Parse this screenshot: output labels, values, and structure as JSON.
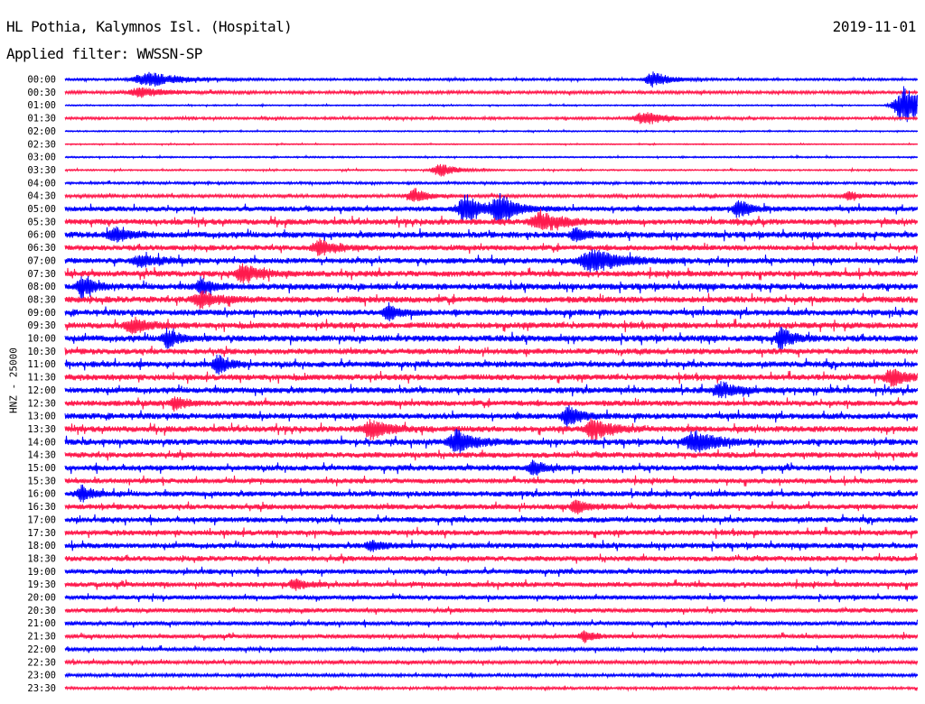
{
  "header": {
    "station": "HL Pothia, Kalymnos Isl. (Hospital)",
    "date": "2019-11-01",
    "filter_label": "Applied filter:",
    "filter_value": "WWSSN-SP"
  },
  "chart_data": {
    "type": "line",
    "title": "HL Pothia, Kalymnos Isl. (Hospital)",
    "ylabel": "HNZ - 25000",
    "trace_colors": [
      "#0000ff",
      "#ff1a4d"
    ],
    "rows": [
      "00:00",
      "00:30",
      "01:00",
      "01:30",
      "02:00",
      "02:30",
      "03:00",
      "03:30",
      "04:00",
      "04:30",
      "05:00",
      "05:30",
      "06:00",
      "06:30",
      "07:00",
      "07:30",
      "08:00",
      "08:30",
      "09:00",
      "09:30",
      "10:00",
      "10:30",
      "11:00",
      "11:30",
      "12:00",
      "12:30",
      "13:00",
      "13:30",
      "14:00",
      "14:30",
      "15:00",
      "15:30",
      "16:00",
      "16:30",
      "17:00",
      "17:30",
      "18:00",
      "18:30",
      "19:00",
      "19:30",
      "20:00",
      "20:30",
      "21:00",
      "21:30",
      "22:00",
      "22:30",
      "23:00",
      "23:30"
    ],
    "noise_level": [
      1.2,
      1.6,
      0.7,
      1.3,
      0.7,
      0.6,
      0.8,
      0.8,
      1.3,
      1.7,
      2.8,
      3.2,
      3.4,
      3.0,
      3.1,
      3.3,
      3.5,
      3.5,
      3.3,
      3.4,
      3.5,
      3.2,
      3.3,
      3.3,
      3.3,
      3.1,
      3.3,
      3.3,
      3.3,
      3.1,
      3.1,
      2.8,
      3.0,
      3.0,
      3.0,
      3.0,
      3.0,
      2.9,
      2.7,
      2.8,
      2.4,
      2.4,
      2.2,
      2.2,
      2.0,
      1.9,
      1.6,
      1.4
    ],
    "events": [
      {
        "row": 0,
        "x": 0.1,
        "amp": 8,
        "width": 0.06
      },
      {
        "row": 0,
        "x": 0.69,
        "amp": 9,
        "width": 0.03
      },
      {
        "row": 1,
        "x": 0.09,
        "amp": 5,
        "width": 0.05
      },
      {
        "row": 2,
        "x": 0.985,
        "amp": 22,
        "width": 0.04
      },
      {
        "row": 3,
        "x": 0.68,
        "amp": 8,
        "width": 0.04
      },
      {
        "row": 7,
        "x": 0.44,
        "amp": 8,
        "width": 0.03
      },
      {
        "row": 9,
        "x": 0.41,
        "amp": 8,
        "width": 0.025
      },
      {
        "row": 9,
        "x": 0.92,
        "amp": 5,
        "width": 0.02
      },
      {
        "row": 10,
        "x": 0.47,
        "amp": 16,
        "width": 0.03
      },
      {
        "row": 10,
        "x": 0.51,
        "amp": 16,
        "width": 0.03
      },
      {
        "row": 10,
        "x": 0.79,
        "amp": 10,
        "width": 0.02
      },
      {
        "row": 11,
        "x": 0.56,
        "amp": 10,
        "width": 0.04
      },
      {
        "row": 12,
        "x": 0.06,
        "amp": 7,
        "width": 0.03
      },
      {
        "row": 12,
        "x": 0.6,
        "amp": 8,
        "width": 0.02
      },
      {
        "row": 13,
        "x": 0.3,
        "amp": 9,
        "width": 0.03
      },
      {
        "row": 14,
        "x": 0.09,
        "amp": 7,
        "width": 0.03
      },
      {
        "row": 14,
        "x": 0.62,
        "amp": 12,
        "width": 0.05
      },
      {
        "row": 15,
        "x": 0.21,
        "amp": 10,
        "width": 0.03
      },
      {
        "row": 16,
        "x": 0.02,
        "amp": 12,
        "width": 0.02
      },
      {
        "row": 16,
        "x": 0.16,
        "amp": 9,
        "width": 0.02
      },
      {
        "row": 17,
        "x": 0.16,
        "amp": 9,
        "width": 0.03
      },
      {
        "row": 18,
        "x": 0.38,
        "amp": 9,
        "width": 0.02
      },
      {
        "row": 19,
        "x": 0.08,
        "amp": 8,
        "width": 0.03
      },
      {
        "row": 20,
        "x": 0.12,
        "amp": 10,
        "width": 0.02
      },
      {
        "row": 20,
        "x": 0.84,
        "amp": 12,
        "width": 0.02
      },
      {
        "row": 22,
        "x": 0.18,
        "amp": 11,
        "width": 0.02
      },
      {
        "row": 23,
        "x": 0.97,
        "amp": 9,
        "width": 0.03
      },
      {
        "row": 24,
        "x": 0.77,
        "amp": 8,
        "width": 0.03
      },
      {
        "row": 25,
        "x": 0.13,
        "amp": 8,
        "width": 0.02
      },
      {
        "row": 26,
        "x": 0.59,
        "amp": 12,
        "width": 0.02
      },
      {
        "row": 27,
        "x": 0.36,
        "amp": 11,
        "width": 0.03
      },
      {
        "row": 27,
        "x": 0.62,
        "amp": 12,
        "width": 0.03
      },
      {
        "row": 28,
        "x": 0.46,
        "amp": 14,
        "width": 0.03
      },
      {
        "row": 28,
        "x": 0.74,
        "amp": 12,
        "width": 0.04
      },
      {
        "row": 30,
        "x": 0.55,
        "amp": 8,
        "width": 0.02
      },
      {
        "row": 32,
        "x": 0.02,
        "amp": 9,
        "width": 0.02
      },
      {
        "row": 33,
        "x": 0.6,
        "amp": 8,
        "width": 0.02
      },
      {
        "row": 36,
        "x": 0.36,
        "amp": 7,
        "width": 0.02
      },
      {
        "row": 39,
        "x": 0.27,
        "amp": 6,
        "width": 0.02
      },
      {
        "row": 43,
        "x": 0.61,
        "amp": 6,
        "width": 0.02
      }
    ]
  }
}
